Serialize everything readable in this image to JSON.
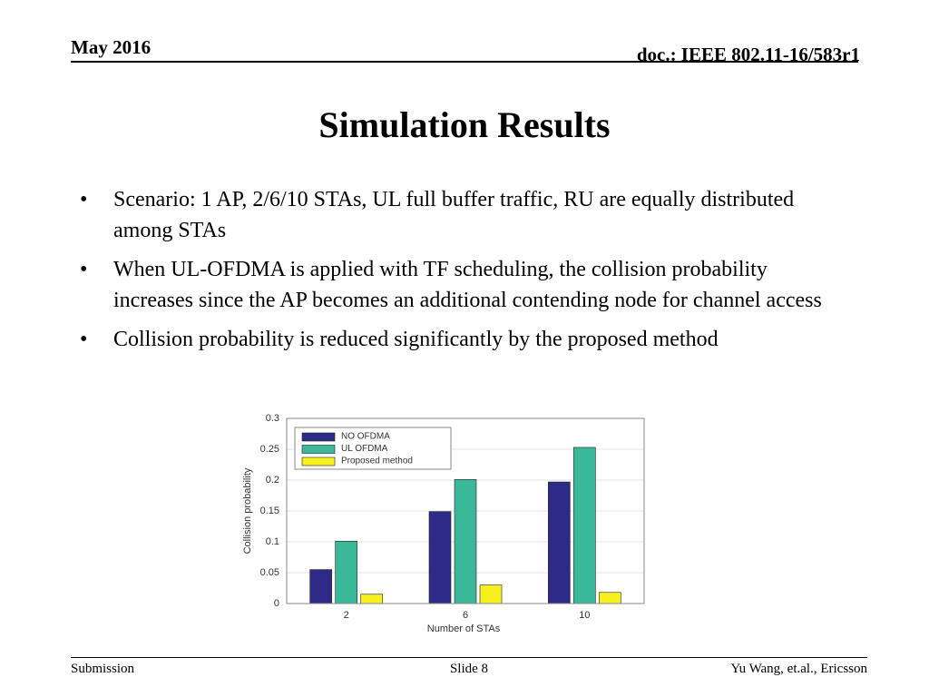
{
  "header": {
    "date": "May 2016",
    "doc": "doc.: IEEE 802.11-16/583r1"
  },
  "title": "Simulation Results",
  "bullets": [
    "Scenario: 1 AP, 2/6/10 STAs, UL full buffer traffic, RU are equally distributed among STAs",
    "When UL-OFDMA is applied with TF scheduling, the collision probability increases since the AP becomes an additional contending node for channel access",
    "Collision probability is reduced significantly by the proposed method"
  ],
  "chart_data": {
    "type": "bar",
    "xlabel": "Number of STAs",
    "ylabel": "Collision probability",
    "categories": [
      "2",
      "6",
      "10"
    ],
    "series": [
      {
        "name": "NO OFDMA",
        "color": "#2e2a87",
        "values": [
          0.055,
          0.149,
          0.197
        ]
      },
      {
        "name": "UL OFDMA",
        "color": "#3bb89a",
        "values": [
          0.101,
          0.201,
          0.253
        ]
      },
      {
        "name": "Proposed method",
        "color": "#f5f01e",
        "values": [
          0.015,
          0.03,
          0.018
        ]
      }
    ],
    "ylim": [
      0,
      0.3
    ],
    "yticks": [
      0,
      0.05,
      0.1,
      0.15,
      0.2,
      0.25,
      0.3
    ],
    "grid": true,
    "legend": "upper-left"
  },
  "footer": {
    "left": "Submission",
    "center": "Slide 8",
    "right": "Yu Wang, et.al., Ericsson"
  }
}
